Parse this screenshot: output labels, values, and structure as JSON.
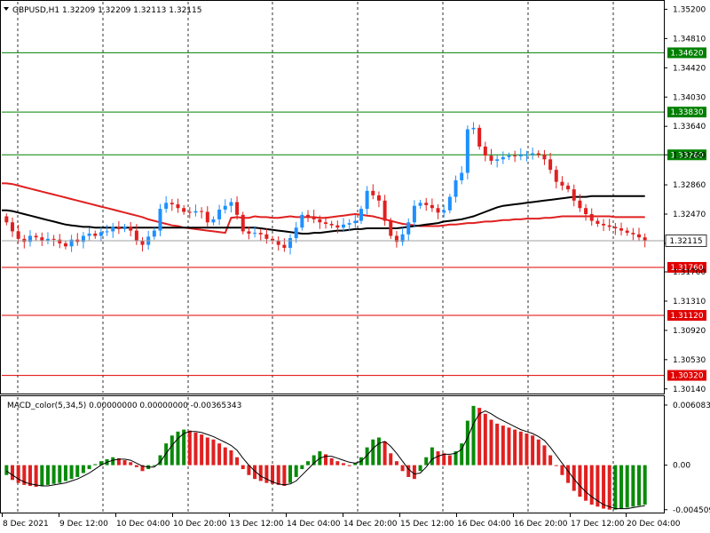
{
  "window": {
    "symbol_header": "GBPUSD,H1  1.32209 1.32209 1.32113 1.32115",
    "macd_header": "MACD_color(5,34,5) 0.00000000 0.00000000 -0.00365343"
  },
  "colors": {
    "bull": "#1e90ff",
    "bear": "#e02020",
    "ma_slow": "#e02020",
    "ma_fast": "#000000",
    "resistance": "#008000",
    "support": "#e00000",
    "hist_up": "#0a8a0a",
    "hist_down": "#e02020",
    "signal": "#000000"
  },
  "chart_data": [
    {
      "type": "line",
      "title": "GBPUSD,H1",
      "price_axis_labels": [
        "1.35200",
        "1.34810",
        "1.34420",
        "1.34030",
        "1.33640",
        "1.33260",
        "1.32860",
        "1.32470",
        "1.32080",
        "1.31700",
        "1.31310",
        "1.30920",
        "1.30530",
        "1.30140"
      ],
      "ylim": [
        1.3009,
        1.353
      ],
      "x_labels": [
        "8 Dec 2021",
        "9 Dec 12:00",
        "10 Dec 04:00",
        "10 Dec 20:00",
        "13 Dec 12:00",
        "14 Dec 04:00",
        "14 Dec 20:00",
        "15 Dec 12:00",
        "16 Dec 04:00",
        "16 Dec 20:00",
        "17 Dec 12:00",
        "20 Dec 04:00"
      ],
      "current_price": "1.32115",
      "levels": [
        {
          "label": "1.34620",
          "value": 1.3462,
          "kind": "resistance"
        },
        {
          "label": "1.33830",
          "value": 1.3383,
          "kind": "resistance"
        },
        {
          "label": "1.33260",
          "value": 1.3326,
          "kind": "resistance"
        },
        {
          "label": "1.31760",
          "value": 1.3176,
          "kind": "support"
        },
        {
          "label": "1.31120",
          "value": 1.3112,
          "kind": "support"
        },
        {
          "label": "1.30320",
          "value": 1.3032,
          "kind": "support"
        }
      ],
      "close_series": [
        1.3236,
        1.3224,
        1.3214,
        1.321,
        1.3218,
        1.3216,
        1.3212,
        1.3214,
        1.3213,
        1.3208,
        1.3204,
        1.3213,
        1.321,
        1.3218,
        1.3221,
        1.3218,
        1.3223,
        1.3224,
        1.323,
        1.3227,
        1.323,
        1.3225,
        1.3211,
        1.3206,
        1.3217,
        1.3225,
        1.3254,
        1.3262,
        1.326,
        1.3255,
        1.325,
        1.3249,
        1.3251,
        1.325,
        1.3236,
        1.324,
        1.3253,
        1.3258,
        1.3263,
        1.3246,
        1.3224,
        1.3221,
        1.3222,
        1.322,
        1.3214,
        1.3211,
        1.3206,
        1.3202,
        1.3215,
        1.3229,
        1.3246,
        1.3244,
        1.324,
        1.3236,
        1.3234,
        1.3232,
        1.3229,
        1.3233,
        1.3235,
        1.3238,
        1.3254,
        1.3278,
        1.3272,
        1.3265,
        1.3238,
        1.3218,
        1.321,
        1.322,
        1.3236,
        1.3258,
        1.3262,
        1.3259,
        1.3255,
        1.3249,
        1.3252,
        1.327,
        1.3292,
        1.3302,
        1.336,
        1.3362,
        1.3337,
        1.3325,
        1.3318,
        1.332,
        1.3323,
        1.3325,
        1.3324,
        1.3326,
        1.3326,
        1.3328,
        1.3326,
        1.332,
        1.3306,
        1.329,
        1.3285,
        1.328,
        1.3265,
        1.3255,
        1.3247,
        1.3238,
        1.3234,
        1.3232,
        1.323,
        1.3228,
        1.3225,
        1.3222,
        1.322,
        1.3216,
        1.32115
      ],
      "ma_red_series": [
        1.3288,
        1.3287,
        1.3285,
        1.3283,
        1.3281,
        1.3279,
        1.3277,
        1.3275,
        1.3273,
        1.3271,
        1.3269,
        1.3267,
        1.3265,
        1.3263,
        1.3261,
        1.3259,
        1.3257,
        1.3255,
        1.3253,
        1.3251,
        1.3249,
        1.3247,
        1.3245,
        1.3243,
        1.324,
        1.3238,
        1.3236,
        1.3234,
        1.3232,
        1.3231,
        1.3229,
        1.3228,
        1.3227,
        1.3226,
        1.3225,
        1.3224,
        1.3223,
        1.3222,
        1.3242,
        1.3243,
        1.3242,
        1.3242,
        1.3244,
        1.3243,
        1.3243,
        1.3242,
        1.3242,
        1.3243,
        1.3244,
        1.3243,
        1.3243,
        1.3243,
        1.3243,
        1.3242,
        1.3242,
        1.3243,
        1.3244,
        1.3245,
        1.3246,
        1.3247,
        1.3246,
        1.3245,
        1.3244,
        1.3242,
        1.324,
        1.3238,
        1.3236,
        1.3234,
        1.3233,
        1.3232,
        1.3231,
        1.3231,
        1.3231,
        1.3231,
        1.3232,
        1.3233,
        1.3233,
        1.3234,
        1.3235,
        1.3235,
        1.3236,
        1.3237,
        1.3237,
        1.3238,
        1.3239,
        1.3239,
        1.324,
        1.324,
        1.3241,
        1.3241,
        1.3241,
        1.3242,
        1.3242,
        1.3243,
        1.3244,
        1.3244,
        1.3244,
        1.3244,
        1.3244,
        1.3244,
        1.3244,
        1.3244,
        1.3244,
        1.3243,
        1.3243,
        1.3243,
        1.3243,
        1.3243,
        1.3243
      ],
      "ma_black_series": [
        1.3252,
        1.3251,
        1.3249,
        1.3247,
        1.3245,
        1.3243,
        1.3241,
        1.3239,
        1.3237,
        1.3235,
        1.3233,
        1.3232,
        1.3231,
        1.323,
        1.323,
        1.3229,
        1.3229,
        1.3229,
        1.3229,
        1.3229,
        1.3229,
        1.3229,
        1.3229,
        1.3229,
        1.3229,
        1.3229,
        1.3229,
        1.3229,
        1.3229,
        1.3229,
        1.3229,
        1.3229,
        1.3229,
        1.3229,
        1.3229,
        1.3229,
        1.3229,
        1.3229,
        1.3229,
        1.3229,
        1.3229,
        1.3229,
        1.3229,
        1.3228,
        1.3227,
        1.3226,
        1.3225,
        1.3224,
        1.3223,
        1.3222,
        1.3221,
        1.3221,
        1.3222,
        1.3222,
        1.3223,
        1.3224,
        1.3225,
        1.3225,
        1.3226,
        1.3227,
        1.3227,
        1.3228,
        1.3228,
        1.3228,
        1.3228,
        1.3228,
        1.3228,
        1.3229,
        1.323,
        1.3231,
        1.3232,
        1.3233,
        1.3234,
        1.3235,
        1.3237,
        1.3238,
        1.3239,
        1.324,
        1.3242,
        1.3244,
        1.3247,
        1.325,
        1.3253,
        1.3256,
        1.3258,
        1.3259,
        1.326,
        1.3261,
        1.3262,
        1.3263,
        1.3264,
        1.3265,
        1.3266,
        1.3267,
        1.3268,
        1.3269,
        1.327,
        1.327,
        1.327,
        1.3271,
        1.3271,
        1.3271,
        1.3271,
        1.3271,
        1.3271,
        1.3271,
        1.3271,
        1.3271,
        1.3271
      ]
    },
    {
      "type": "bar",
      "title": "MACD_color(5,34,5)",
      "axis_labels": [
        "0.0060834",
        "0.00",
        "-0.004509"
      ],
      "ylim": [
        -0.0048,
        0.0068
      ],
      "histogram": [
        -0.001,
        -0.0015,
        -0.0018,
        -0.002,
        -0.0021,
        -0.0022,
        -0.0021,
        -0.002,
        -0.0019,
        -0.0018,
        -0.0016,
        -0.0014,
        -0.0012,
        -0.0008,
        -0.0004,
        0.0001,
        0.0004,
        0.0006,
        0.0008,
        0.0007,
        0.0005,
        0.0003,
        -0.0002,
        -0.0006,
        -0.0004,
        -0.0001,
        0.001,
        0.0022,
        0.003,
        0.0034,
        0.0036,
        0.0035,
        0.0033,
        0.0031,
        0.0028,
        0.0026,
        0.0022,
        0.0018,
        0.0015,
        0.0008,
        -0.0004,
        -0.001,
        -0.0014,
        -0.0016,
        -0.0018,
        -0.0019,
        -0.002,
        -0.0021,
        -0.0018,
        -0.0012,
        -0.0004,
        0.0004,
        0.001,
        0.0014,
        0.0011,
        0.0007,
        0.0004,
        0.0002,
        -0.0001,
        0.0002,
        0.0008,
        0.0018,
        0.0026,
        0.0028,
        0.0024,
        0.0012,
        0.0004,
        -0.0006,
        -0.0012,
        -0.0014,
        -0.0006,
        0.0008,
        0.0018,
        0.0014,
        0.0012,
        0.001,
        0.0014,
        0.0022,
        0.0045,
        0.006,
        0.0058,
        0.0052,
        0.0046,
        0.0042,
        0.004,
        0.0038,
        0.0036,
        0.0034,
        0.0032,
        0.003,
        0.0026,
        0.002,
        0.001,
        0.0,
        -0.001,
        -0.0018,
        -0.0026,
        -0.0032,
        -0.0036,
        -0.004,
        -0.0042,
        -0.0044,
        -0.0045,
        -0.0045,
        -0.0044,
        -0.0043,
        -0.0042,
        -0.0041,
        -0.004
      ],
      "signal": [
        -0.0006,
        -0.001,
        -0.0014,
        -0.0017,
        -0.0019,
        -0.002,
        -0.0021,
        -0.0021,
        -0.002,
        -0.0019,
        -0.0018,
        -0.0016,
        -0.0014,
        -0.0011,
        -0.0008,
        -0.0004,
        0.0,
        0.0003,
        0.0005,
        0.0006,
        0.0006,
        0.0005,
        0.0002,
        -0.0001,
        -0.0002,
        -0.0002,
        0.0003,
        0.0012,
        0.002,
        0.0027,
        0.0032,
        0.0034,
        0.0034,
        0.0033,
        0.0031,
        0.0029,
        0.0026,
        0.0023,
        0.002,
        0.0015,
        0.0007,
        0.0,
        -0.0006,
        -0.0011,
        -0.0014,
        -0.0017,
        -0.0019,
        -0.002,
        -0.0019,
        -0.0016,
        -0.001,
        -0.0004,
        0.0002,
        0.0007,
        0.0009,
        0.0009,
        0.0007,
        0.0005,
        0.0003,
        0.0002,
        0.0004,
        0.001,
        0.0017,
        0.0022,
        0.0024,
        0.0019,
        0.0012,
        0.0004,
        -0.0004,
        -0.0009,
        -0.0008,
        -0.0002,
        0.0006,
        0.0009,
        0.0011,
        0.0011,
        0.0012,
        0.0016,
        0.0028,
        0.0042,
        0.0052,
        0.0055,
        0.0052,
        0.0048,
        0.0045,
        0.0042,
        0.0039,
        0.0036,
        0.0034,
        0.0032,
        0.0029,
        0.0025,
        0.0018,
        0.001,
        0.0002,
        -0.0006,
        -0.0014,
        -0.0021,
        -0.0027,
        -0.0032,
        -0.0036,
        -0.004,
        -0.0042,
        -0.0044,
        -0.0044,
        -0.0044,
        -0.0043,
        -0.0042,
        -0.0041
      ]
    }
  ]
}
